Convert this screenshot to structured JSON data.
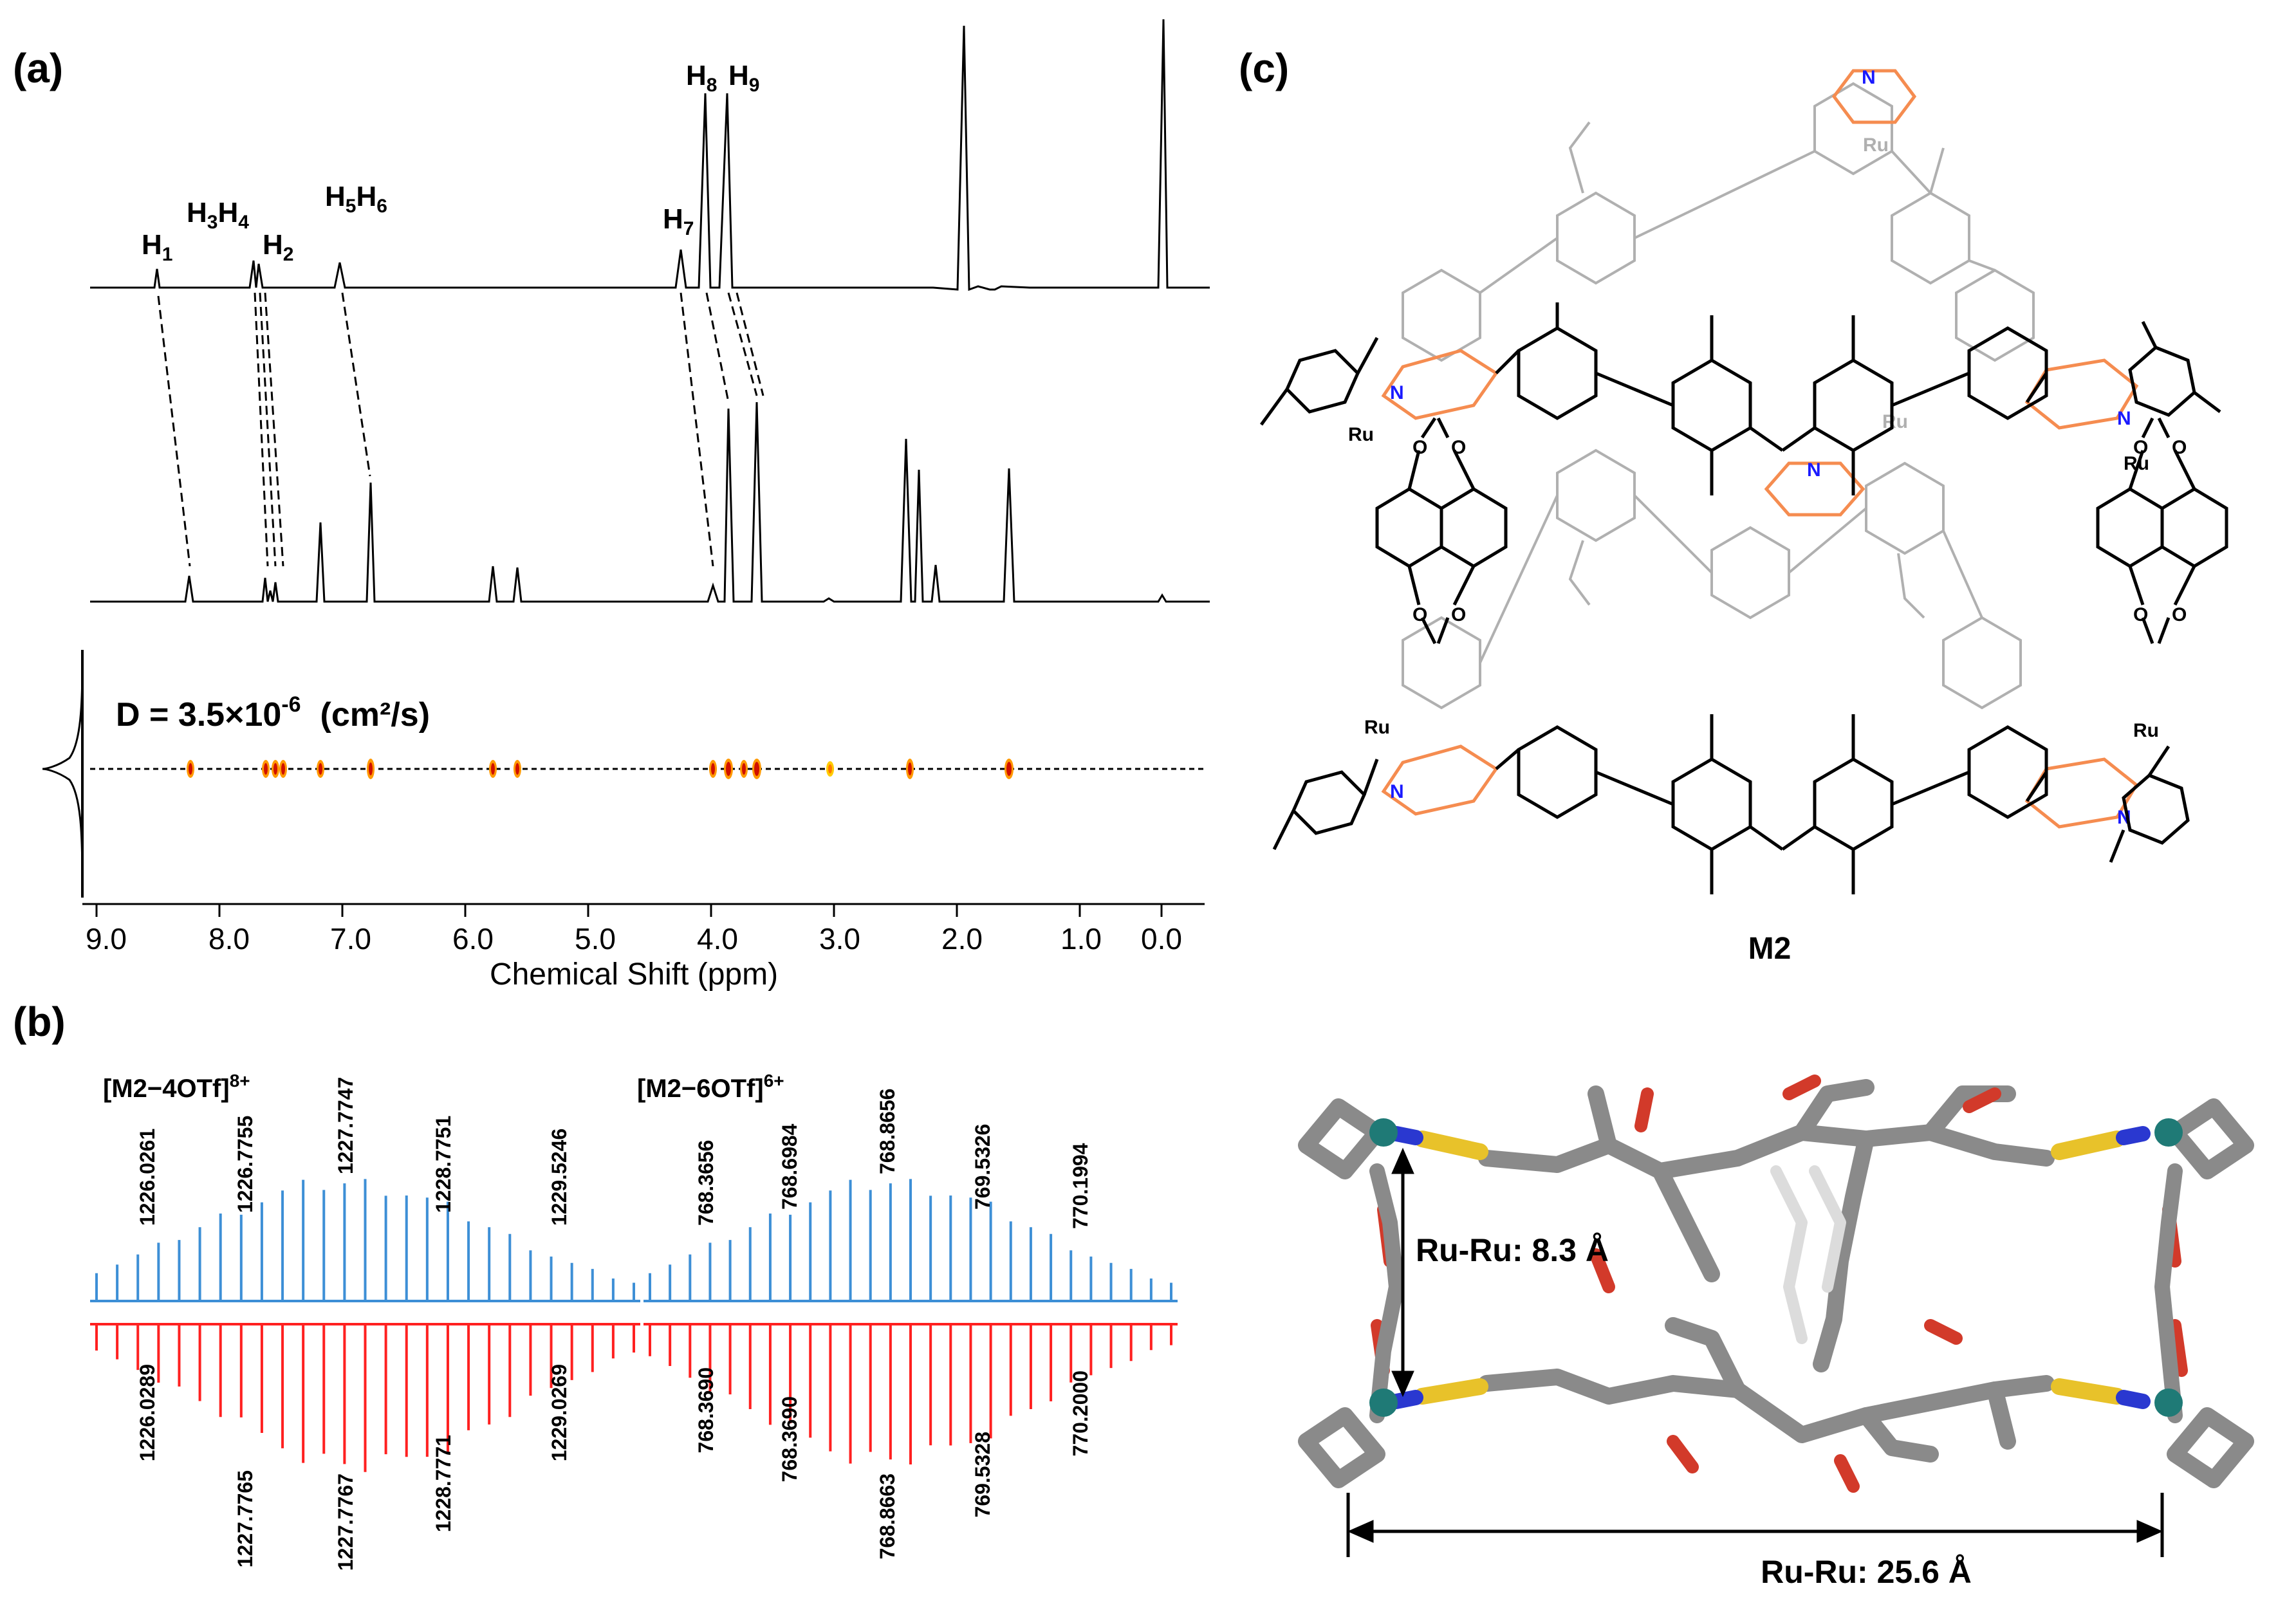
{
  "panels": {
    "a": "(a)",
    "b": "(b)",
    "c": "(c)"
  },
  "nmr": {
    "peak_labels": [
      {
        "id": "h1",
        "main": "H",
        "sub": "1"
      },
      {
        "id": "h34",
        "main": "H",
        "sub": "3",
        "main2": "H",
        "sub2": "4"
      },
      {
        "id": "h2",
        "main": "H",
        "sub": "2"
      },
      {
        "id": "h56",
        "main": "H",
        "sub": "5",
        "main2": "H",
        "sub2": "6"
      },
      {
        "id": "h7",
        "main": "H",
        "sub": "7"
      },
      {
        "id": "h8",
        "main": "H",
        "sub": "8"
      },
      {
        "id": "h9",
        "main": "H",
        "sub": "9"
      }
    ],
    "dosy_label": "D = 3.5×10",
    "dosy_exp": "-6",
    "dosy_unit": "(cm²/s)",
    "xticks": [
      "9.0",
      "8.0",
      "7.0",
      "6.0",
      "5.0",
      "4.0",
      "3.0",
      "2.0",
      "1.0",
      "0.0"
    ],
    "xlabel": "Chemical Shift (ppm)"
  },
  "ms": {
    "left_title": "[M2−4OTf]",
    "left_charge": "8+",
    "right_title": "[M2−6OTf]",
    "right_charge": "6+",
    "blue_left": [
      "1226.0261",
      "1226.7755",
      "1227.7747",
      "1228.7751",
      "1229.5246"
    ],
    "blue_right": [
      "768.3656",
      "768.6984",
      "768.8656",
      "769.5326",
      "770.1994"
    ],
    "red_left": [
      "1226.0289",
      "1227.7765",
      "1227.7767",
      "1228.7771",
      "1229.0269"
    ],
    "red_right": [
      "768.3690",
      "768.3690",
      "768.8663",
      "769.5328",
      "770.2000"
    ],
    "blue_color": "#3d8fd6",
    "red_color": "#ff2020"
  },
  "structure": {
    "compound": "M2",
    "ru": "Ru",
    "n": "N",
    "o": "O",
    "dist_short": "Ru-Ru: 8.3 Å",
    "dist_long": "Ru-Ru: 25.6 Å",
    "pyridine_color": "#f58c50",
    "nitrogen_color": "#1a1aff"
  }
}
